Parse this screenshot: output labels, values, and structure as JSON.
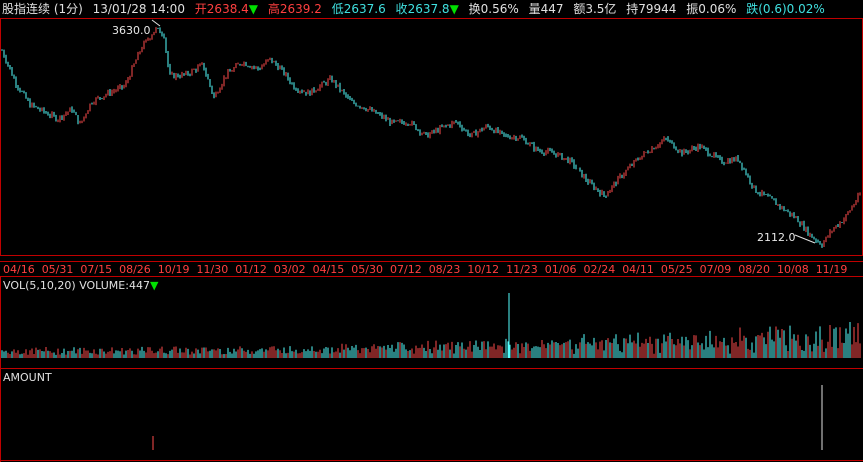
{
  "header": {
    "title": "股指连续 (1分)",
    "datetime": "13/01/28 14:00",
    "open_label": "开",
    "open_value": "2638.4",
    "high_label": "高",
    "high_value": "2639.2",
    "low_label": "低",
    "low_value": "2637.6",
    "close_label": "收",
    "close_value": "2637.8",
    "turnover": "换0.56%",
    "volume": "量447",
    "amount": "额3.5亿",
    "open_interest": "持79944",
    "amplitude": "振0.06%",
    "change": "跌(0.6)0.02%",
    "arrow_down": "▼"
  },
  "volume_panel": {
    "label": "VOL(5,10,20)",
    "value_label": "VOLUME:447",
    "arrow": "▼"
  },
  "amount_panel": {
    "label": "AMOUNT"
  },
  "colors": {
    "up": "#ff4c4c",
    "down": "#54ffff",
    "frame": "#c00000",
    "text": "#e0e0e0"
  },
  "chart_data": {
    "type": "candlestick",
    "x_tick_labels": [
      "04/16",
      "05/31",
      "07/15",
      "08/26",
      "10/19",
      "11/30",
      "01/12",
      "03/02",
      "04/15",
      "05/30",
      "07/12",
      "08/23",
      "10/12",
      "11/23",
      "01/06",
      "02/24",
      "04/11",
      "05/25",
      "07/09",
      "08/20",
      "10/08",
      "11/19"
    ],
    "max_label": "3630.0",
    "min_label": "2112.0",
    "approx_close_path": [
      [
        0,
        3480
      ],
      [
        5,
        3250
      ],
      [
        10,
        3100
      ],
      [
        15,
        3050
      ],
      [
        20,
        3000
      ],
      [
        25,
        3070
      ],
      [
        28,
        2960
      ],
      [
        32,
        3120
      ],
      [
        38,
        3180
      ],
      [
        44,
        3230
      ],
      [
        50,
        3500
      ],
      [
        55,
        3630
      ],
      [
        58,
        3600
      ],
      [
        60,
        3300
      ],
      [
        66,
        3310
      ],
      [
        72,
        3380
      ],
      [
        76,
        3150
      ],
      [
        80,
        3300
      ],
      [
        86,
        3400
      ],
      [
        92,
        3350
      ],
      [
        96,
        3420
      ],
      [
        100,
        3350
      ],
      [
        105,
        3220
      ],
      [
        110,
        3180
      ],
      [
        118,
        3280
      ],
      [
        125,
        3120
      ],
      [
        130,
        3080
      ],
      [
        135,
        3030
      ],
      [
        140,
        2970
      ],
      [
        146,
        2980
      ],
      [
        152,
        2880
      ],
      [
        158,
        2940
      ],
      [
        163,
        2980
      ],
      [
        168,
        2880
      ],
      [
        174,
        2950
      ],
      [
        180,
        2880
      ],
      [
        186,
        2870
      ],
      [
        192,
        2780
      ],
      [
        198,
        2760
      ],
      [
        204,
        2700
      ],
      [
        210,
        2560
      ],
      [
        216,
        2460
      ],
      [
        222,
        2600
      ],
      [
        228,
        2720
      ],
      [
        232,
        2780
      ],
      [
        238,
        2860
      ],
      [
        244,
        2760
      ],
      [
        250,
        2810
      ],
      [
        258,
        2700
      ],
      [
        264,
        2720
      ],
      [
        270,
        2500
      ],
      [
        276,
        2430
      ],
      [
        280,
        2370
      ],
      [
        285,
        2300
      ],
      [
        290,
        2180
      ],
      [
        294,
        2120
      ],
      [
        298,
        2230
      ],
      [
        302,
        2300
      ],
      [
        306,
        2420
      ],
      [
        308,
        2480
      ]
    ],
    "x_range": [
      0,
      308
    ],
    "y_range": [
      2080,
      3680
    ]
  }
}
